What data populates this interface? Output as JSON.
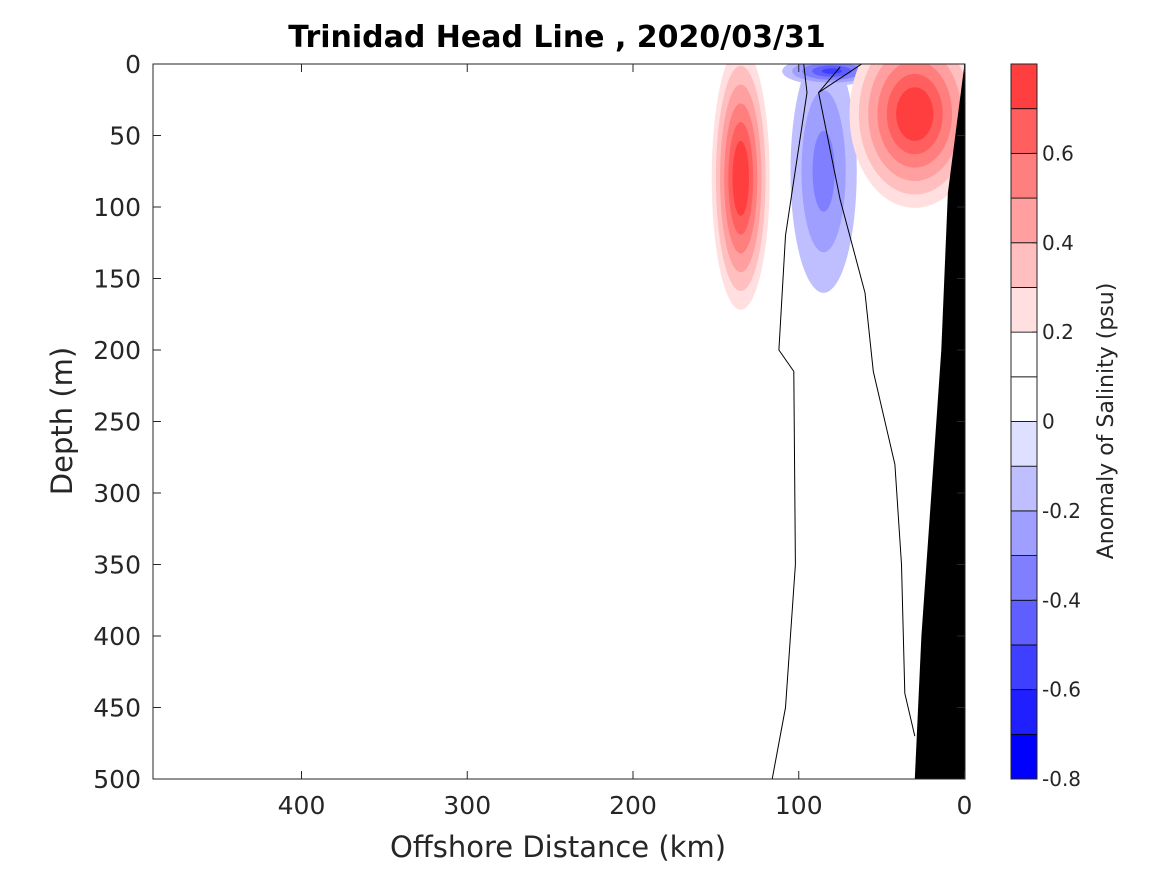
{
  "chart_data": {
    "type": "heatmap",
    "title": "Trinidad Head Line , 2020/03/31",
    "xlabel": "Offshore Distance (km)",
    "ylabel": "Depth (m)",
    "xlim": [
      0,
      490
    ],
    "x_reversed": true,
    "ylim": [
      0,
      500
    ],
    "y_reversed": true,
    "x_ticks": [
      400,
      300,
      200,
      100,
      0
    ],
    "y_ticks": [
      0,
      50,
      100,
      150,
      200,
      250,
      300,
      350,
      400,
      450,
      500
    ],
    "colorbar": {
      "label": "Anomaly of Salinity (psu)",
      "range": [
        -0.8,
        0.8
      ],
      "tick_values": [
        -0.8,
        -0.6,
        -0.4,
        -0.2,
        0,
        0.2,
        0.4,
        0.6
      ],
      "tick_labels": [
        "-0.8",
        "-0.6",
        "-0.4",
        "-0.2",
        "0",
        "0.2",
        "0.4",
        "0.6"
      ],
      "levels": [
        {
          "lo": -0.8,
          "hi": -0.7,
          "color": "#0000ff"
        },
        {
          "lo": -0.7,
          "hi": -0.6,
          "color": "#1f1fff"
        },
        {
          "lo": -0.6,
          "hi": -0.5,
          "color": "#3f3fff"
        },
        {
          "lo": -0.5,
          "hi": -0.4,
          "color": "#5f5fff"
        },
        {
          "lo": -0.4,
          "hi": -0.3,
          "color": "#7f7fff"
        },
        {
          "lo": -0.3,
          "hi": -0.2,
          "color": "#9f9fff"
        },
        {
          "lo": -0.2,
          "hi": -0.1,
          "color": "#bfbfff"
        },
        {
          "lo": -0.1,
          "hi": 0.0,
          "color": "#dfdfff"
        },
        {
          "lo": 0.0,
          "hi": 0.1,
          "color": "#ffffff"
        },
        {
          "lo": 0.1,
          "hi": 0.2,
          "color": "#ffffff"
        },
        {
          "lo": 0.2,
          "hi": 0.3,
          "color": "#ffdfdf"
        },
        {
          "lo": 0.3,
          "hi": 0.4,
          "color": "#ffbfbf"
        },
        {
          "lo": 0.4,
          "hi": 0.5,
          "color": "#ff9f9f"
        },
        {
          "lo": 0.5,
          "hi": 0.6,
          "color": "#ff7f7f"
        },
        {
          "lo": 0.6,
          "hi": 0.7,
          "color": "#ff5f5f"
        },
        {
          "lo": 0.7,
          "hi": 0.8,
          "color": "#ff3f3f"
        }
      ]
    },
    "anomaly_features": [
      {
        "name": "positive-anomaly-offshore",
        "center_km": 135,
        "center_depth_m": 80,
        "peak": 0.8,
        "extent_km": [
          115,
          150
        ],
        "extent_depth_m": [
          0,
          185
        ]
      },
      {
        "name": "negative-anomaly-mid-subsurface",
        "center_km": 85,
        "center_depth_m": 75,
        "peak": -0.3,
        "extent_km": [
          70,
          105
        ],
        "extent_depth_m": [
          30,
          160
        ]
      },
      {
        "name": "negative-anomaly-surface",
        "center_km": 80,
        "center_depth_m": 5,
        "peak": -0.5,
        "extent_km": [
          65,
          110
        ],
        "extent_depth_m": [
          0,
          15
        ]
      },
      {
        "name": "positive-anomaly-nearshore",
        "center_km": 30,
        "center_depth_m": 35,
        "peak": 0.8,
        "extent_km": [
          20,
          75
        ],
        "extent_depth_m": [
          0,
          110
        ]
      }
    ],
    "zero_contours": [
      {
        "points": [
          [
            97,
            0
          ],
          [
            95,
            20
          ],
          [
            108,
            120
          ],
          [
            112,
            200
          ],
          [
            103,
            215
          ],
          [
            102,
            350
          ],
          [
            108,
            450
          ],
          [
            116,
            500
          ]
        ]
      },
      {
        "points": [
          [
            62,
            0
          ],
          [
            88,
            20
          ],
          [
            75,
            95
          ],
          [
            60,
            160
          ],
          [
            55,
            215
          ],
          [
            42,
            280
          ],
          [
            38,
            350
          ],
          [
            36,
            440
          ],
          [
            30,
            470
          ]
        ]
      },
      {
        "points": [
          [
            88,
            20
          ],
          [
            75,
            2
          ]
        ]
      }
    ],
    "bathymetry": {
      "color": "#000000",
      "points": [
        [
          0,
          0
        ],
        [
          10,
          90
        ],
        [
          14,
          200
        ],
        [
          20,
          300
        ],
        [
          26,
          400
        ],
        [
          30,
          500
        ],
        [
          0,
          500
        ]
      ]
    }
  }
}
